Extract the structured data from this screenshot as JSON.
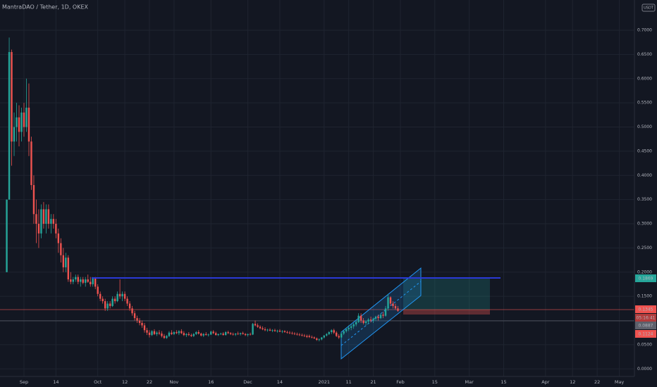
{
  "chart_data": {
    "type": "candlestick",
    "title": "MantraDAO / Tether, 1D, OKEX",
    "currency": "USDT",
    "up_color": "#26a69a",
    "down_color": "#ef5350",
    "grid": true,
    "xlim": [
      -9.74,
      248.14
    ],
    "ylim": [
      -0.0156,
      0.7626
    ],
    "yticks": [
      {
        "value": 0.7,
        "label": "0.7000"
      },
      {
        "value": 0.65,
        "label": "0.6500"
      },
      {
        "value": 0.6,
        "label": "0.6000"
      },
      {
        "value": 0.55,
        "label": "0.5500"
      },
      {
        "value": 0.5,
        "label": "0.5000"
      },
      {
        "value": 0.45,
        "label": "0.4500"
      },
      {
        "value": 0.4,
        "label": "0.4000"
      },
      {
        "value": 0.35,
        "label": "0.3500"
      },
      {
        "value": 0.3,
        "label": "0.3000"
      },
      {
        "value": 0.25,
        "label": "0.2500"
      },
      {
        "value": 0.2,
        "label": "0.2000"
      },
      {
        "value": 0.15,
        "label": "0.1500"
      },
      {
        "value": 0.1,
        "label": "0.1000"
      },
      {
        "value": 0.05,
        "label": "0.0500"
      },
      {
        "value": 0,
        "label": "0.0000"
      }
    ],
    "xticks": [
      {
        "value": 0,
        "label": "Sep"
      },
      {
        "value": 13,
        "label": "14"
      },
      {
        "value": 30,
        "label": "Oct"
      },
      {
        "value": 41,
        "label": "12"
      },
      {
        "value": 51,
        "label": "22"
      },
      {
        "value": 61,
        "label": "Nov"
      },
      {
        "value": 76,
        "label": "16"
      },
      {
        "value": 91,
        "label": "Dec"
      },
      {
        "value": 104,
        "label": "14"
      },
      {
        "value": 122,
        "label": "2021"
      },
      {
        "value": 132,
        "label": "11"
      },
      {
        "value": 142,
        "label": "21"
      },
      {
        "value": 153,
        "label": "Feb"
      },
      {
        "value": 167,
        "label": "15"
      },
      {
        "value": 181,
        "label": "Mar"
      },
      {
        "value": 195,
        "label": "15"
      },
      {
        "value": 212,
        "label": "Apr"
      },
      {
        "value": 223,
        "label": "12"
      },
      {
        "value": 233,
        "label": "22"
      },
      {
        "value": 242,
        "label": "May"
      }
    ],
    "price_tags": [
      "0.1869",
      "0.1345",
      "05:16:41",
      "0.0887",
      "0.1124"
    ],
    "x": [
      -7,
      -6,
      -5,
      -4,
      -3,
      -2,
      -1,
      0,
      1,
      2,
      3,
      4,
      5,
      6,
      7,
      8,
      9,
      10,
      11,
      12,
      13,
      14,
      15,
      16,
      17,
      18,
      19,
      20,
      21,
      22,
      23,
      24,
      25,
      26,
      27,
      28,
      29,
      30,
      31,
      32,
      33,
      34,
      35,
      36,
      37,
      38,
      39,
      40,
      41,
      42,
      43,
      44,
      45,
      46,
      47,
      48,
      49,
      50,
      51,
      52,
      53,
      54,
      55,
      56,
      57,
      58,
      59,
      60,
      61,
      62,
      63,
      64,
      65,
      66,
      67,
      68,
      69,
      70,
      71,
      72,
      73,
      74,
      75,
      76,
      77,
      78,
      79,
      80,
      81,
      82,
      83,
      84,
      85,
      86,
      87,
      88,
      89,
      90,
      91,
      92,
      93,
      94,
      95,
      96,
      97,
      98,
      99,
      100,
      101,
      102,
      103,
      104,
      105,
      106,
      107,
      108,
      109,
      110,
      111,
      112,
      113,
      114,
      115,
      116,
      117,
      118,
      119,
      120,
      121,
      122,
      123,
      124,
      125,
      126,
      127,
      128,
      129,
      130,
      131,
      132,
      133,
      134,
      135,
      136,
      137,
      138,
      139,
      140,
      141,
      142,
      143,
      144,
      145,
      146,
      147,
      148,
      149,
      150,
      151,
      152
    ],
    "candles": [
      [
        0.2,
        0.35,
        0.2,
        0.35
      ],
      [
        0.35,
        0.685,
        0.35,
        0.655
      ],
      [
        0.655,
        0.66,
        0.42,
        0.47
      ],
      [
        0.47,
        0.53,
        0.44,
        0.5
      ],
      [
        0.5,
        0.55,
        0.47,
        0.52
      ],
      [
        0.52,
        0.545,
        0.46,
        0.49
      ],
      [
        0.49,
        0.54,
        0.47,
        0.53
      ],
      [
        0.53,
        0.55,
        0.48,
        0.5
      ],
      [
        0.5,
        0.6,
        0.49,
        0.54
      ],
      [
        0.54,
        0.59,
        0.44,
        0.47
      ],
      [
        0.47,
        0.48,
        0.37,
        0.38
      ],
      [
        0.38,
        0.4,
        0.3,
        0.32
      ],
      [
        0.32,
        0.35,
        0.26,
        0.3
      ],
      [
        0.3,
        0.33,
        0.25,
        0.28
      ],
      [
        0.28,
        0.34,
        0.27,
        0.33
      ],
      [
        0.33,
        0.345,
        0.29,
        0.3
      ],
      [
        0.3,
        0.34,
        0.28,
        0.33
      ],
      [
        0.33,
        0.34,
        0.29,
        0.3
      ],
      [
        0.3,
        0.32,
        0.28,
        0.31
      ],
      [
        0.31,
        0.32,
        0.29,
        0.3
      ],
      [
        0.3,
        0.31,
        0.27,
        0.28
      ],
      [
        0.28,
        0.29,
        0.24,
        0.26
      ],
      [
        0.26,
        0.27,
        0.22,
        0.235
      ],
      [
        0.235,
        0.25,
        0.2,
        0.21
      ],
      [
        0.21,
        0.24,
        0.2,
        0.23
      ],
      [
        0.23,
        0.235,
        0.18,
        0.185
      ],
      [
        0.185,
        0.2,
        0.175,
        0.18
      ],
      [
        0.18,
        0.19,
        0.175,
        0.185
      ],
      [
        0.185,
        0.195,
        0.18,
        0.19
      ],
      [
        0.19,
        0.195,
        0.175,
        0.18
      ],
      [
        0.18,
        0.19,
        0.17,
        0.185
      ],
      [
        0.185,
        0.19,
        0.175,
        0.178
      ],
      [
        0.178,
        0.19,
        0.17,
        0.185
      ],
      [
        0.185,
        0.195,
        0.178,
        0.18
      ],
      [
        0.18,
        0.19,
        0.17,
        0.175
      ],
      [
        0.175,
        0.19,
        0.17,
        0.188
      ],
      [
        0.188,
        0.19,
        0.165,
        0.17
      ],
      [
        0.17,
        0.175,
        0.15,
        0.155
      ],
      [
        0.155,
        0.16,
        0.14,
        0.145
      ],
      [
        0.145,
        0.15,
        0.135,
        0.14
      ],
      [
        0.14,
        0.145,
        0.12,
        0.125
      ],
      [
        0.125,
        0.14,
        0.12,
        0.135
      ],
      [
        0.135,
        0.14,
        0.125,
        0.13
      ],
      [
        0.13,
        0.15,
        0.128,
        0.145
      ],
      [
        0.145,
        0.15,
        0.135,
        0.14
      ],
      [
        0.14,
        0.16,
        0.138,
        0.155
      ],
      [
        0.155,
        0.185,
        0.145,
        0.15
      ],
      [
        0.15,
        0.16,
        0.14,
        0.155
      ],
      [
        0.155,
        0.16,
        0.14,
        0.145
      ],
      [
        0.145,
        0.15,
        0.13,
        0.135
      ],
      [
        0.135,
        0.14,
        0.12,
        0.125
      ],
      [
        0.125,
        0.13,
        0.11,
        0.115
      ],
      [
        0.115,
        0.12,
        0.1,
        0.105
      ],
      [
        0.105,
        0.11,
        0.095,
        0.1
      ],
      [
        0.1,
        0.105,
        0.09,
        0.095
      ],
      [
        0.095,
        0.1,
        0.085,
        0.09
      ],
      [
        0.09,
        0.095,
        0.075,
        0.08
      ],
      [
        0.08,
        0.085,
        0.07,
        0.075
      ],
      [
        0.075,
        0.08,
        0.065,
        0.07
      ],
      [
        0.07,
        0.08,
        0.068,
        0.078
      ],
      [
        0.078,
        0.082,
        0.07,
        0.072
      ],
      [
        0.072,
        0.078,
        0.068,
        0.075
      ],
      [
        0.075,
        0.08,
        0.07,
        0.073
      ],
      [
        0.073,
        0.078,
        0.065,
        0.068
      ],
      [
        0.068,
        0.072,
        0.062,
        0.064
      ],
      [
        0.064,
        0.07,
        0.062,
        0.068
      ],
      [
        0.068,
        0.078,
        0.066,
        0.075
      ],
      [
        0.075,
        0.08,
        0.07,
        0.072
      ],
      [
        0.072,
        0.078,
        0.07,
        0.076
      ],
      [
        0.076,
        0.08,
        0.072,
        0.074
      ],
      [
        0.074,
        0.08,
        0.07,
        0.078
      ],
      [
        0.078,
        0.082,
        0.072,
        0.074
      ],
      [
        0.074,
        0.078,
        0.068,
        0.07
      ],
      [
        0.07,
        0.074,
        0.066,
        0.072
      ],
      [
        0.072,
        0.076,
        0.068,
        0.07
      ],
      [
        0.07,
        0.073,
        0.066,
        0.068
      ],
      [
        0.068,
        0.074,
        0.066,
        0.072
      ],
      [
        0.072,
        0.078,
        0.07,
        0.076
      ],
      [
        0.076,
        0.08,
        0.071,
        0.073
      ],
      [
        0.073,
        0.075,
        0.067,
        0.069
      ],
      [
        0.069,
        0.074,
        0.066,
        0.072
      ],
      [
        0.072,
        0.076,
        0.069,
        0.07
      ],
      [
        0.07,
        0.073,
        0.067,
        0.071
      ],
      [
        0.071,
        0.079,
        0.07,
        0.077
      ],
      [
        0.077,
        0.08,
        0.072,
        0.074
      ],
      [
        0.074,
        0.077,
        0.069,
        0.07
      ],
      [
        0.07,
        0.073,
        0.068,
        0.072
      ],
      [
        0.072,
        0.075,
        0.07,
        0.073
      ],
      [
        0.073,
        0.076,
        0.069,
        0.07
      ],
      [
        0.07,
        0.078,
        0.069,
        0.076
      ],
      [
        0.076,
        0.079,
        0.072,
        0.074
      ],
      [
        0.074,
        0.076,
        0.07,
        0.072
      ],
      [
        0.072,
        0.075,
        0.069,
        0.071
      ],
      [
        0.071,
        0.074,
        0.068,
        0.073
      ],
      [
        0.073,
        0.077,
        0.07,
        0.072
      ],
      [
        0.072,
        0.075,
        0.069,
        0.074
      ],
      [
        0.074,
        0.077,
        0.071,
        0.072
      ],
      [
        0.072,
        0.074,
        0.068,
        0.07
      ],
      [
        0.07,
        0.073,
        0.067,
        0.072
      ],
      [
        0.072,
        0.075,
        0.069,
        0.071
      ],
      [
        0.071,
        0.095,
        0.07,
        0.093
      ],
      [
        0.093,
        0.1,
        0.088,
        0.09
      ],
      [
        0.09,
        0.094,
        0.085,
        0.087
      ],
      [
        0.087,
        0.09,
        0.082,
        0.084
      ],
      [
        0.084,
        0.088,
        0.08,
        0.082
      ],
      [
        0.082,
        0.086,
        0.078,
        0.08
      ],
      [
        0.08,
        0.083,
        0.077,
        0.081
      ],
      [
        0.081,
        0.084,
        0.078,
        0.079
      ],
      [
        0.079,
        0.082,
        0.076,
        0.08
      ],
      [
        0.08,
        0.083,
        0.077,
        0.078
      ],
      [
        0.078,
        0.081,
        0.075,
        0.079
      ],
      [
        0.079,
        0.082,
        0.076,
        0.077
      ],
      [
        0.077,
        0.08,
        0.074,
        0.078
      ],
      [
        0.078,
        0.08,
        0.075,
        0.076
      ],
      [
        0.076,
        0.079,
        0.073,
        0.075
      ],
      [
        0.075,
        0.078,
        0.072,
        0.074
      ],
      [
        0.074,
        0.077,
        0.071,
        0.073
      ],
      [
        0.073,
        0.076,
        0.07,
        0.072
      ],
      [
        0.072,
        0.075,
        0.069,
        0.071
      ],
      [
        0.071,
        0.074,
        0.068,
        0.07
      ],
      [
        0.07,
        0.073,
        0.067,
        0.069
      ],
      [
        0.069,
        0.072,
        0.066,
        0.068
      ],
      [
        0.068,
        0.071,
        0.064,
        0.066
      ],
      [
        0.068,
        0.071,
        0.064,
        0.066
      ],
      [
        0.066,
        0.069,
        0.063,
        0.065
      ],
      [
        0.065,
        0.067,
        0.062,
        0.063
      ],
      [
        0.063,
        0.065,
        0.058,
        0.06
      ],
      [
        0.06,
        0.063,
        0.057,
        0.061
      ],
      [
        0.061,
        0.066,
        0.059,
        0.065
      ],
      [
        0.065,
        0.07,
        0.063,
        0.069
      ],
      [
        0.069,
        0.074,
        0.067,
        0.072
      ],
      [
        0.072,
        0.078,
        0.07,
        0.076
      ],
      [
        0.076,
        0.082,
        0.072,
        0.08
      ],
      [
        0.08,
        0.083,
        0.072,
        0.075
      ],
      [
        0.075,
        0.078,
        0.066,
        0.068
      ],
      [
        0.068,
        0.072,
        0.062,
        0.065
      ],
      [
        0.065,
        0.075,
        0.063,
        0.073
      ],
      [
        0.073,
        0.08,
        0.07,
        0.078
      ],
      [
        0.078,
        0.085,
        0.075,
        0.082
      ],
      [
        0.082,
        0.09,
        0.078,
        0.085
      ],
      [
        0.085,
        0.092,
        0.08,
        0.088
      ],
      [
        0.088,
        0.095,
        0.083,
        0.092
      ],
      [
        0.092,
        0.1,
        0.088,
        0.097
      ],
      [
        0.097,
        0.115,
        0.095,
        0.11
      ],
      [
        0.11,
        0.115,
        0.095,
        0.1
      ],
      [
        0.1,
        0.105,
        0.092,
        0.095
      ],
      [
        0.095,
        0.1,
        0.09,
        0.098
      ],
      [
        0.098,
        0.105,
        0.093,
        0.102
      ],
      [
        0.102,
        0.108,
        0.096,
        0.1
      ],
      [
        0.1,
        0.106,
        0.095,
        0.104
      ],
      [
        0.104,
        0.11,
        0.1,
        0.108
      ],
      [
        0.108,
        0.112,
        0.1,
        0.105
      ],
      [
        0.105,
        0.115,
        0.103,
        0.112
      ],
      [
        0.112,
        0.118,
        0.105,
        0.11
      ],
      [
        0.11,
        0.13,
        0.108,
        0.125
      ],
      [
        0.125,
        0.155,
        0.12,
        0.148
      ],
      [
        0.148,
        0.15,
        0.13,
        0.135
      ],
      [
        0.135,
        0.14,
        0.125,
        0.13
      ],
      [
        0.13,
        0.135,
        0.122,
        0.125
      ],
      [
        0.125,
        0.13,
        0.118,
        0.12
      ]
    ]
  }
}
